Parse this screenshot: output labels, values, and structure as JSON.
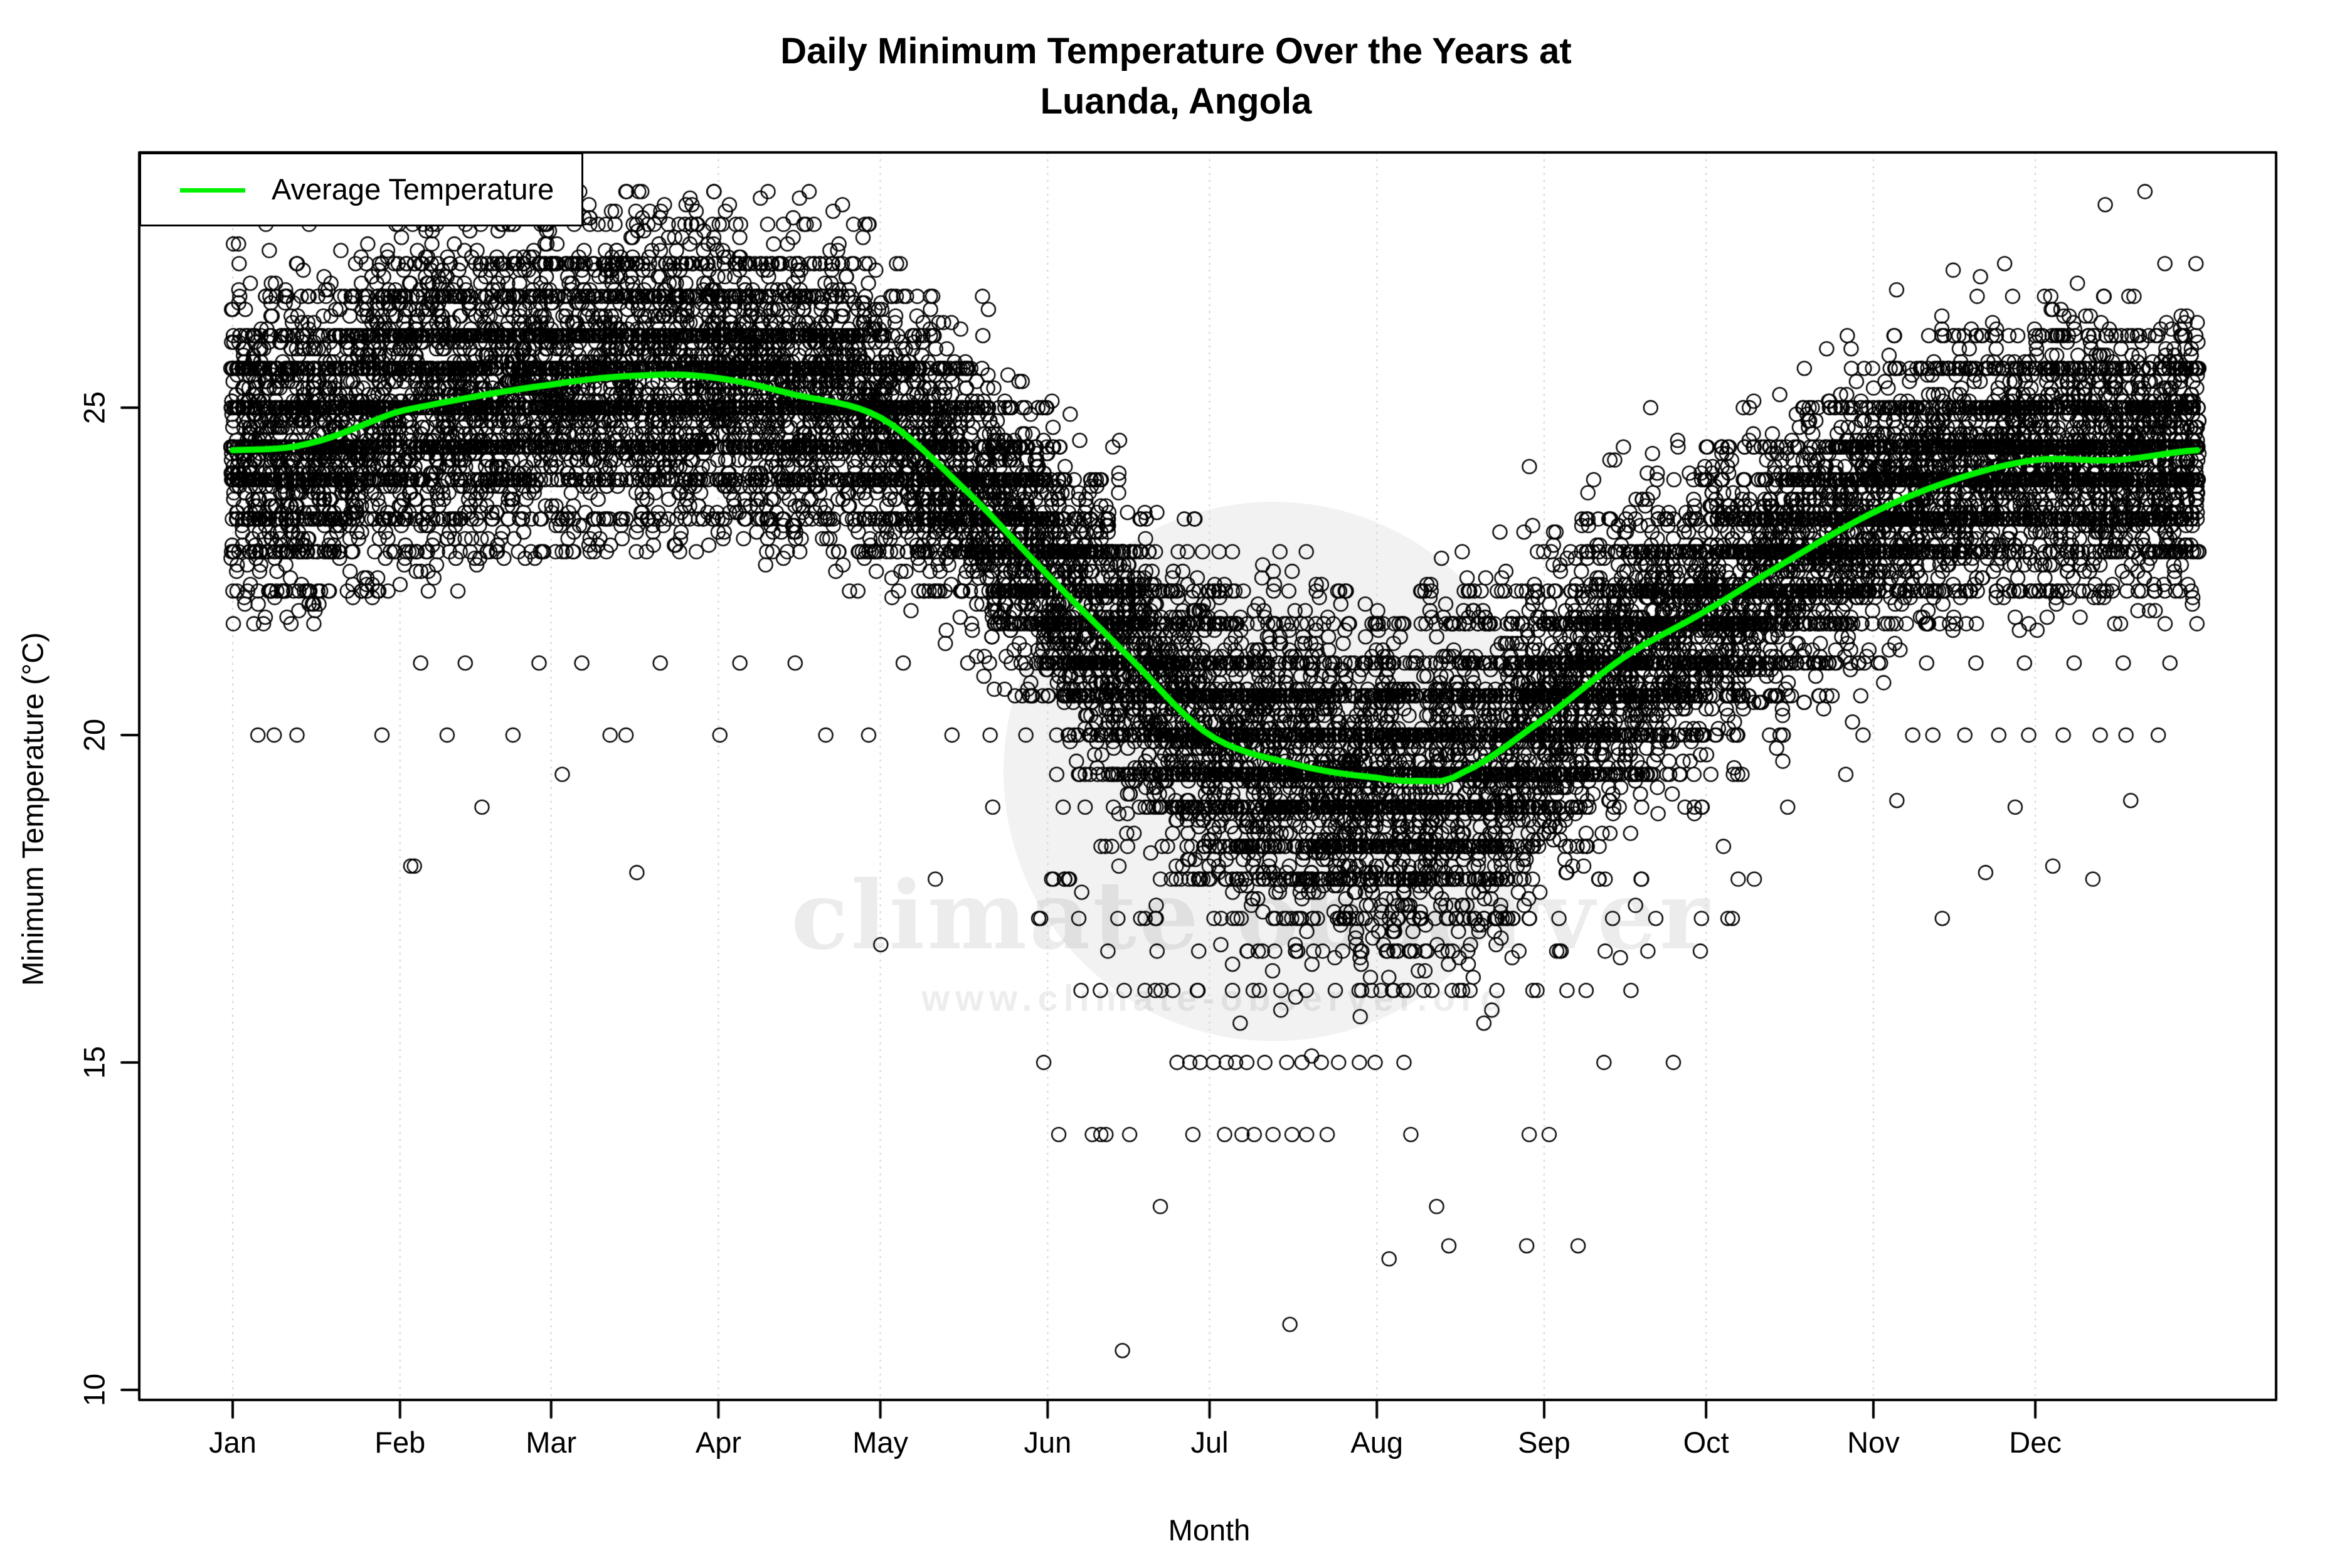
{
  "title": {
    "line1": "Daily Minimum Temperature Over the Years at",
    "line2": "Luanda, Angola"
  },
  "legend": {
    "label": "Average Temperature"
  },
  "watermark": {
    "text": "climate observer",
    "url": "www.climate-observer.org"
  },
  "axes": {
    "x_label": "Month",
    "y_label": "Minimum Temperature (°C)",
    "x_ticks": [
      "Jan",
      "Feb",
      "Mar",
      "Apr",
      "May",
      "Jun",
      "Jul",
      "Aug",
      "Sep",
      "Oct",
      "Nov",
      "Dec"
    ],
    "y_ticks": [
      10,
      15,
      20,
      25
    ]
  },
  "colors": {
    "average_line": "#00f000",
    "point_stroke": "#000000",
    "gridline": "#cfcfcf",
    "axis": "#000000"
  },
  "chart_data": {
    "type": "scatter",
    "title": "Daily Minimum Temperature Over the Years at Luanda, Angola",
    "xlabel": "Month",
    "ylabel": "Minimum Temperature (°C)",
    "x_unit": "day_of_year",
    "ylim": [
      9.8,
      28.9
    ],
    "grid": "vertical-dotted-at-month-starts",
    "legend_position": "top-left",
    "categories": [
      "Jan",
      "Feb",
      "Mar",
      "Apr",
      "May",
      "Jun",
      "Jul",
      "Aug",
      "Sep",
      "Oct",
      "Nov",
      "Dec"
    ],
    "month_start_days": [
      1,
      32,
      60,
      91,
      121,
      152,
      182,
      213,
      244,
      274,
      305,
      335
    ],
    "average_line": {
      "name": "Average Temperature",
      "days": [
        1,
        15,
        32,
        60,
        79,
        91,
        105,
        121,
        136,
        152,
        167,
        182,
        198,
        213,
        221,
        228,
        244,
        259,
        274,
        290,
        305,
        320,
        335,
        350,
        365
      ],
      "values": [
        24.35,
        24.45,
        24.95,
        25.35,
        25.5,
        25.45,
        25.2,
        24.85,
        23.8,
        22.45,
        21.2,
        20.0,
        19.55,
        19.35,
        19.3,
        19.4,
        20.25,
        21.2,
        21.9,
        22.7,
        23.4,
        23.9,
        24.2,
        24.2,
        24.35
      ]
    },
    "scatter_model": {
      "description": "Daily minima for ~50 years of record; dense cloud follows seasonal mean, values quantized to 0.1 °C with strong horizontal rows at whole-°F conversions (e.g. 23.9, 22.8, 22.2, 21.1, 20.0, 17.8, 16.1, 15.0, 13.9).",
      "n_years": 50,
      "seed": 7,
      "point_radius_px": 11,
      "sd_by_month": [
        1.15,
        1.2,
        1.15,
        1.05,
        1.0,
        1.05,
        1.15,
        1.2,
        1.1,
        1.0,
        0.95,
        1.0
      ],
      "fahrenheit_snap_prob": 0.45,
      "low_tail_months": [
        5,
        6,
        7,
        8,
        9
      ],
      "low_tail_prob": 0.05,
      "sparse_row_window_days": [
        150,
        285
      ],
      "sparse_rows_mid": {
        "values": [
          17.8,
          17.2,
          16.7,
          16.1
        ],
        "prob": 0.012
      },
      "sparse_rows_low": {
        "values": [
          15.0,
          13.9
        ],
        "prob": 0.0015
      },
      "max_value": 28.3
    },
    "outliers": [
      [
        34,
        18.0
      ],
      [
        35,
        18.0
      ],
      [
        47,
        18.9
      ],
      [
        62,
        19.4
      ],
      [
        76,
        17.9
      ],
      [
        121,
        16.8
      ],
      [
        131,
        17.8
      ],
      [
        142,
        18.9
      ],
      [
        6,
        20.0
      ],
      [
        9,
        20.0
      ],
      [
        13,
        20.0
      ],
      [
        29,
        20.0
      ],
      [
        41,
        20.0
      ],
      [
        53,
        20.0
      ],
      [
        71,
        20.0
      ],
      [
        74,
        20.0
      ],
      [
        91,
        20.0
      ],
      [
        111,
        20.0
      ],
      [
        119,
        20.0
      ],
      [
        134,
        20.0
      ],
      [
        141,
        20.0
      ],
      [
        36,
        21.1
      ],
      [
        44,
        21.1
      ],
      [
        58,
        21.1
      ],
      [
        66,
        21.1
      ],
      [
        80,
        21.1
      ],
      [
        95,
        21.1
      ],
      [
        105,
        21.1
      ],
      [
        125,
        21.1
      ],
      [
        154,
        13.9
      ],
      [
        160,
        13.9
      ],
      [
        163,
        13.9
      ],
      [
        167,
        13.9
      ],
      [
        185,
        13.9
      ],
      [
        188,
        13.9
      ],
      [
        190,
        13.9
      ],
      [
        194,
        13.9
      ],
      [
        197,
        13.9
      ],
      [
        200,
        13.9
      ],
      [
        219,
        13.9
      ],
      [
        241,
        13.9
      ],
      [
        245,
        13.9
      ],
      [
        176,
        15.0
      ],
      [
        178,
        15.0
      ],
      [
        180,
        15.0
      ],
      [
        183,
        15.0
      ],
      [
        185,
        15.0
      ],
      [
        187,
        15.0
      ],
      [
        189,
        15.0
      ],
      [
        192,
        15.0
      ],
      [
        196,
        15.0
      ],
      [
        199,
        15.0
      ],
      [
        203,
        15.0
      ],
      [
        206,
        15.0
      ],
      [
        210,
        15.0
      ],
      [
        213,
        15.0
      ],
      [
        268,
        15.0
      ],
      [
        158,
        16.1
      ],
      [
        162,
        16.1
      ],
      [
        166,
        16.1
      ],
      [
        170,
        16.1
      ],
      [
        175,
        16.1
      ],
      [
        180,
        16.1
      ],
      [
        186,
        16.1
      ],
      [
        190,
        16.1
      ],
      [
        195,
        16.1
      ],
      [
        200,
        16.1
      ],
      [
        205,
        16.1
      ],
      [
        210,
        16.1
      ],
      [
        216,
        16.1
      ],
      [
        222,
        16.1
      ],
      [
        228,
        16.1
      ],
      [
        235,
        16.1
      ],
      [
        242,
        16.1
      ],
      [
        248,
        16.1
      ],
      [
        166,
        10.6
      ],
      [
        197,
        11.0
      ],
      [
        215,
        12.0
      ],
      [
        226,
        12.2
      ],
      [
        241,
        12.2
      ],
      [
        250,
        12.2
      ],
      [
        173,
        12.8
      ],
      [
        224,
        12.8
      ],
      [
        309,
        19.0
      ],
      [
        318,
        17.2
      ],
      [
        326,
        17.9
      ],
      [
        331,
        18.9
      ],
      [
        338,
        18.0
      ],
      [
        346,
        17.8
      ],
      [
        353,
        19.0
      ],
      [
        312,
        20.0
      ],
      [
        316,
        20.0
      ],
      [
        322,
        20.0
      ],
      [
        328,
        20.0
      ],
      [
        334,
        20.0
      ],
      [
        340,
        20.0
      ],
      [
        347,
        20.0
      ],
      [
        352,
        20.0
      ],
      [
        358,
        20.0
      ],
      [
        306,
        21.1
      ],
      [
        315,
        21.1
      ],
      [
        324,
        21.1
      ],
      [
        333,
        21.1
      ],
      [
        342,
        21.1
      ],
      [
        351,
        21.1
      ],
      [
        360,
        21.1
      ]
    ]
  }
}
